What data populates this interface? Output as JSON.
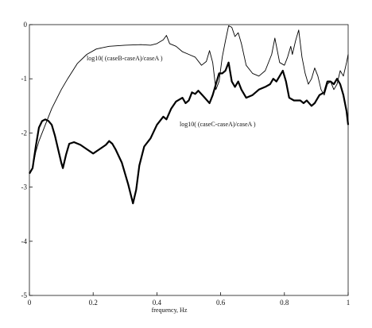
{
  "chart_data": {
    "type": "line",
    "title": "",
    "xlabel": "frequency, Hz",
    "ylabel": "",
    "xlim": [
      0,
      1
    ],
    "ylim": [
      -5,
      0
    ],
    "grid": false,
    "x_ticks": [
      "0",
      "0.2",
      "0.4",
      "0.6",
      "0.8",
      "1"
    ],
    "y_ticks": [
      "0",
      "-1",
      "-2",
      "-3",
      "-4",
      "-5"
    ],
    "annotations": [
      "log10( (caseB-caseA)/caseA )",
      "log10( (caseC-caseA)/caseA )"
    ],
    "series": [
      {
        "style": "thin",
        "points": [
          [
            0.0,
            -2.75
          ],
          [
            0.01,
            -2.65
          ],
          [
            0.02,
            -2.35
          ],
          [
            0.03,
            -2.15
          ],
          [
            0.05,
            -1.85
          ],
          [
            0.07,
            -1.55
          ],
          [
            0.1,
            -1.2
          ],
          [
            0.12,
            -1.0
          ],
          [
            0.15,
            -0.72
          ],
          [
            0.18,
            -0.55
          ],
          [
            0.21,
            -0.45
          ],
          [
            0.25,
            -0.4
          ],
          [
            0.3,
            -0.38
          ],
          [
            0.35,
            -0.37
          ],
          [
            0.38,
            -0.38
          ],
          [
            0.4,
            -0.35
          ],
          [
            0.42,
            -0.28
          ],
          [
            0.43,
            -0.2
          ],
          [
            0.44,
            -0.35
          ],
          [
            0.46,
            -0.4
          ],
          [
            0.48,
            -0.5
          ],
          [
            0.5,
            -0.55
          ],
          [
            0.52,
            -0.6
          ],
          [
            0.54,
            -0.75
          ],
          [
            0.555,
            -0.68
          ],
          [
            0.565,
            -0.48
          ],
          [
            0.575,
            -0.7
          ],
          [
            0.585,
            -1.2
          ],
          [
            0.595,
            -1.05
          ],
          [
            0.605,
            -0.6
          ],
          [
            0.615,
            -0.3
          ],
          [
            0.625,
            -0.02
          ],
          [
            0.635,
            -0.05
          ],
          [
            0.645,
            -0.22
          ],
          [
            0.655,
            -0.15
          ],
          [
            0.665,
            -0.35
          ],
          [
            0.68,
            -0.75
          ],
          [
            0.7,
            -0.9
          ],
          [
            0.72,
            -0.95
          ],
          [
            0.74,
            -0.85
          ],
          [
            0.76,
            -0.55
          ],
          [
            0.77,
            -0.25
          ],
          [
            0.785,
            -0.7
          ],
          [
            0.8,
            -0.75
          ],
          [
            0.81,
            -0.6
          ],
          [
            0.82,
            -0.4
          ],
          [
            0.825,
            -0.55
          ],
          [
            0.835,
            -0.3
          ],
          [
            0.845,
            -0.1
          ],
          [
            0.855,
            -0.6
          ],
          [
            0.865,
            -0.9
          ],
          [
            0.875,
            -1.1
          ],
          [
            0.885,
            -1.0
          ],
          [
            0.895,
            -0.8
          ],
          [
            0.905,
            -0.95
          ],
          [
            0.915,
            -1.2
          ],
          [
            0.925,
            -1.3
          ],
          [
            0.935,
            -1.1
          ],
          [
            0.945,
            -1.05
          ],
          [
            0.955,
            -1.2
          ],
          [
            0.965,
            -1.1
          ],
          [
            0.975,
            -0.85
          ],
          [
            0.985,
            -0.95
          ],
          [
            0.995,
            -0.7
          ],
          [
            1.0,
            -0.55
          ]
        ]
      },
      {
        "style": "thick",
        "points": [
          [
            0.0,
            -2.75
          ],
          [
            0.01,
            -2.65
          ],
          [
            0.02,
            -2.25
          ],
          [
            0.03,
            -1.9
          ],
          [
            0.04,
            -1.78
          ],
          [
            0.05,
            -1.75
          ],
          [
            0.06,
            -1.78
          ],
          [
            0.07,
            -1.85
          ],
          [
            0.08,
            -2.05
          ],
          [
            0.09,
            -2.3
          ],
          [
            0.1,
            -2.55
          ],
          [
            0.105,
            -2.65
          ],
          [
            0.115,
            -2.4
          ],
          [
            0.125,
            -2.2
          ],
          [
            0.14,
            -2.17
          ],
          [
            0.16,
            -2.22
          ],
          [
            0.18,
            -2.3
          ],
          [
            0.2,
            -2.38
          ],
          [
            0.22,
            -2.3
          ],
          [
            0.24,
            -2.22
          ],
          [
            0.25,
            -2.15
          ],
          [
            0.26,
            -2.2
          ],
          [
            0.27,
            -2.3
          ],
          [
            0.29,
            -2.55
          ],
          [
            0.31,
            -2.95
          ],
          [
            0.325,
            -3.3
          ],
          [
            0.335,
            -3.05
          ],
          [
            0.345,
            -2.6
          ],
          [
            0.36,
            -2.25
          ],
          [
            0.38,
            -2.1
          ],
          [
            0.4,
            -1.85
          ],
          [
            0.42,
            -1.7
          ],
          [
            0.43,
            -1.75
          ],
          [
            0.445,
            -1.55
          ],
          [
            0.46,
            -1.42
          ],
          [
            0.48,
            -1.35
          ],
          [
            0.49,
            -1.45
          ],
          [
            0.5,
            -1.4
          ],
          [
            0.51,
            -1.25
          ],
          [
            0.52,
            -1.28
          ],
          [
            0.53,
            -1.22
          ],
          [
            0.55,
            -1.35
          ],
          [
            0.565,
            -1.45
          ],
          [
            0.575,
            -1.3
          ],
          [
            0.585,
            -1.1
          ],
          [
            0.595,
            -0.9
          ],
          [
            0.605,
            -0.9
          ],
          [
            0.615,
            -0.85
          ],
          [
            0.625,
            -0.7
          ],
          [
            0.635,
            -1.05
          ],
          [
            0.645,
            -1.15
          ],
          [
            0.655,
            -1.05
          ],
          [
            0.665,
            -1.2
          ],
          [
            0.68,
            -1.35
          ],
          [
            0.7,
            -1.3
          ],
          [
            0.72,
            -1.2
          ],
          [
            0.74,
            -1.15
          ],
          [
            0.755,
            -1.1
          ],
          [
            0.765,
            -1.0
          ],
          [
            0.775,
            -1.05
          ],
          [
            0.785,
            -0.95
          ],
          [
            0.795,
            -0.85
          ],
          [
            0.805,
            -1.05
          ],
          [
            0.815,
            -1.35
          ],
          [
            0.83,
            -1.4
          ],
          [
            0.85,
            -1.4
          ],
          [
            0.86,
            -1.45
          ],
          [
            0.87,
            -1.4
          ],
          [
            0.885,
            -1.5
          ],
          [
            0.895,
            -1.45
          ],
          [
            0.91,
            -1.3
          ],
          [
            0.925,
            -1.25
          ],
          [
            0.935,
            -1.05
          ],
          [
            0.945,
            -1.05
          ],
          [
            0.955,
            -1.1
          ],
          [
            0.965,
            -1.0
          ],
          [
            0.975,
            -1.1
          ],
          [
            0.985,
            -1.3
          ],
          [
            0.995,
            -1.6
          ],
          [
            1.0,
            -1.85
          ]
        ]
      }
    ]
  }
}
